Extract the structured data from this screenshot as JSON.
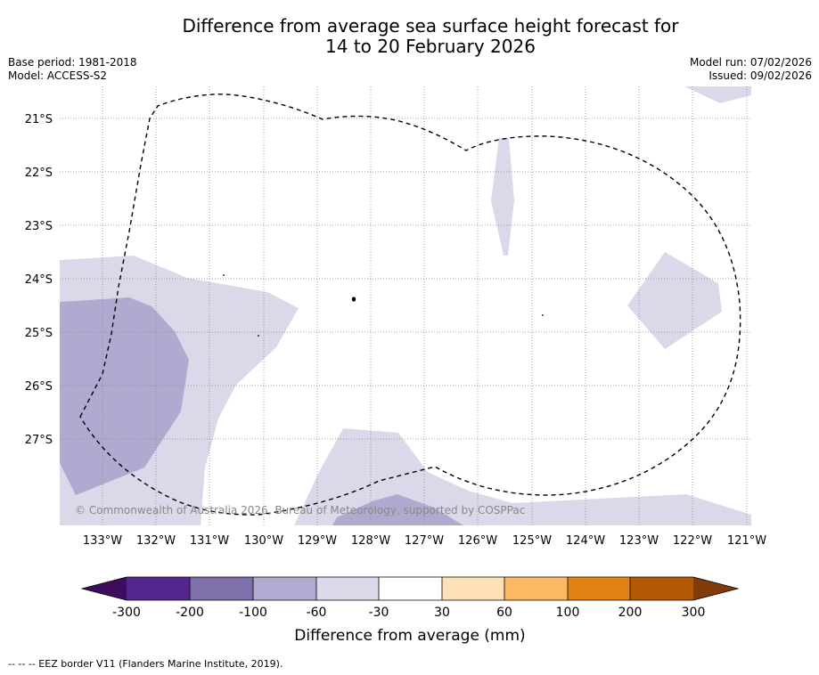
{
  "header": {
    "title_line1": "Difference from average sea surface height forecast for",
    "title_line2": "14 to 20 February 2026",
    "base_period": "Base period: 1981-2018",
    "model": "Model: ACCESS-S2",
    "model_run": "Model run: 07/02/2026",
    "issued": "Issued: 09/02/2026"
  },
  "map": {
    "lon_labels": [
      "133°W",
      "132°W",
      "131°W",
      "130°W",
      "129°W",
      "128°W",
      "127°W",
      "126°W",
      "125°W",
      "124°W",
      "123°W",
      "122°W",
      "121°W"
    ],
    "lat_labels": [
      "21°S",
      "22°S",
      "23°S",
      "24°S",
      "25°S",
      "26°S",
      "27°S"
    ],
    "copyright": "© Commonwealth of Australia 2026, Bureau of Meteorology, supported by COSPPac"
  },
  "colorbar": {
    "title": "Difference from average (mm)",
    "tick_labels": [
      "-300",
      "-200",
      "-100",
      "-60",
      "-30",
      "30",
      "60",
      "100",
      "200",
      "300"
    ],
    "colors": [
      "#3f0d5e",
      "#54278f",
      "#7f70ac",
      "#b1aad1",
      "#dadaeb",
      "#ffffff",
      "#fee0b6",
      "#fdb863",
      "#e08214",
      "#b35806",
      "#7f3b08"
    ]
  },
  "footer": {
    "legend_note": "--  --  -- EEZ border V11 (Flanders Marine Institute, 2019)."
  }
}
